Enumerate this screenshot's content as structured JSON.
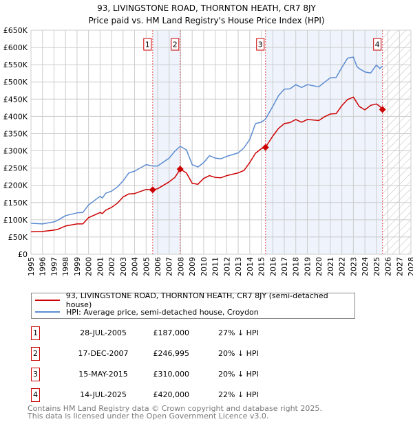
{
  "chart_data": {
    "type": "line",
    "title": "93, LIVINGSTONE ROAD, THORNTON HEATH, CR7 8JY",
    "subtitle": "Price paid vs. HM Land Registry's House Price Index (HPI)",
    "xlim": [
      1995,
      2028
    ],
    "ylim": [
      0,
      650000
    ],
    "grid": true,
    "y_ticks": [
      "£0",
      "£50K",
      "£100K",
      "£150K",
      "£200K",
      "£250K",
      "£300K",
      "£350K",
      "£400K",
      "£450K",
      "£500K",
      "£550K",
      "£600K",
      "£650K"
    ],
    "x_ticks": [
      "1995",
      "1996",
      "1997",
      "1998",
      "1999",
      "2000",
      "2001",
      "2002",
      "2003",
      "2004",
      "2005",
      "2006",
      "2007",
      "2008",
      "2009",
      "2010",
      "2011",
      "2012",
      "2013",
      "2014",
      "2015",
      "2016",
      "2017",
      "2018",
      "2019",
      "2020",
      "2021",
      "2022",
      "2023",
      "2024",
      "2025",
      "2026",
      "2027",
      "2028"
    ],
    "shaded_ranges": [
      [
        2005.57,
        2007.96
      ],
      [
        2015.37,
        2025.53
      ]
    ],
    "forecast_hatch_from": 2025.53,
    "series": [
      {
        "name": "93, LIVINGSTONE ROAD, THORNTON HEATH, CR7 8JY (semi-detached house)",
        "color": "#cc0000",
        "x": [
          1995,
          1996,
          1997,
          1997.3,
          1998,
          1999,
          1999.5,
          2000,
          2001,
          2001.2,
          2001.5,
          2002,
          2002.5,
          2003,
          2003.5,
          2004,
          2005,
          2005.57,
          2006,
          2007,
          2007.5,
          2007.96,
          2008.5,
          2009,
          2009.5,
          2010,
          2010.5,
          2011,
          2011.5,
          2012,
          2013,
          2013.5,
          2014,
          2014.5,
          2015,
          2015.37,
          2016,
          2016.5,
          2017,
          2017.5,
          2018,
          2018.5,
          2019,
          2020,
          2020.5,
          2021,
          2021.5,
          2022,
          2022.5,
          2023,
          2023.3,
          2023.5,
          2024,
          2024.5,
          2025,
          2025.3,
          2025.53
        ],
        "y": [
          65000,
          66000,
          70000,
          72000,
          82000,
          88000,
          88000,
          106000,
          121000,
          118000,
          128000,
          136000,
          148000,
          166000,
          175000,
          176000,
          188000,
          187000,
          190000,
          210000,
          223000,
          246995,
          236000,
          206000,
          203000,
          220000,
          228000,
          223000,
          222000,
          228000,
          236000,
          243000,
          266000,
          293000,
          306000,
          310000,
          343000,
          365000,
          379000,
          382000,
          391000,
          383000,
          391000,
          388000,
          399000,
          407000,
          408000,
          431000,
          449000,
          456000,
          440000,
          429000,
          419000,
          432000,
          436000,
          429000,
          420000
        ]
      },
      {
        "name": "HPI: Average price, semi-detached house, Croydon",
        "color": "#5b8bd0",
        "x": [
          1995,
          1996,
          1997,
          1997.3,
          1998,
          1999,
          1999.5,
          2000,
          2001,
          2001.2,
          2001.5,
          2002,
          2002.5,
          2003,
          2003.5,
          2004,
          2005,
          2005.57,
          2006,
          2007,
          2007.5,
          2007.96,
          2008.5,
          2009,
          2009.5,
          2010,
          2010.5,
          2011,
          2011.5,
          2012,
          2013,
          2013.5,
          2014,
          2014.5,
          2015,
          2015.37,
          2016,
          2016.5,
          2017,
          2017.5,
          2018,
          2018.5,
          2019,
          2020,
          2020.5,
          2021,
          2021.5,
          2022,
          2022.5,
          2023,
          2023.3,
          2023.5,
          2024,
          2024.5,
          2025,
          2025.3,
          2025.53
        ],
        "y": [
          90000,
          88000,
          94000,
          98000,
          112000,
          120000,
          121000,
          143000,
          168000,
          163000,
          177000,
          183000,
          195000,
          213000,
          236000,
          241000,
          260000,
          256000,
          256000,
          279000,
          299000,
          313000,
          303000,
          260000,
          253000,
          266000,
          286000,
          279000,
          277000,
          284000,
          294000,
          309000,
          333000,
          379000,
          383000,
          392000,
          429000,
          460000,
          479000,
          480000,
          492000,
          484000,
          492000,
          486000,
          499000,
          512000,
          513000,
          542000,
          569000,
          572000,
          545000,
          539000,
          529000,
          526000,
          549000,
          539000,
          546000
        ]
      }
    ],
    "sales": [
      {
        "label": "1",
        "x": 2005.57,
        "y": 187000
      },
      {
        "label": "2",
        "x": 2007.96,
        "y": 246995
      },
      {
        "label": "3",
        "x": 2015.37,
        "y": 310000
      },
      {
        "label": "4",
        "x": 2025.53,
        "y": 420000
      }
    ]
  },
  "title": "93, LIVINGSTONE ROAD, THORNTON HEATH, CR7 8JY",
  "subtitle": "Price paid vs. HM Land Registry's House Price Index (HPI)",
  "legend": {
    "property": "93, LIVINGSTONE ROAD, THORNTON HEATH, CR7 8JY (semi-detached house)",
    "hpi": "HPI: Average price, semi-detached house, Croydon"
  },
  "transactions": [
    {
      "num": "1",
      "date": "28-JUL-2005",
      "price": "£187,000",
      "pct": "27% ↓ HPI"
    },
    {
      "num": "2",
      "date": "17-DEC-2007",
      "price": "£246,995",
      "pct": "20% ↓ HPI"
    },
    {
      "num": "3",
      "date": "15-MAY-2015",
      "price": "£310,000",
      "pct": "20% ↓ HPI"
    },
    {
      "num": "4",
      "date": "14-JUL-2025",
      "price": "£420,000",
      "pct": "22% ↓ HPI"
    }
  ],
  "footer": {
    "line1": "Contains HM Land Registry data © Crown copyright and database right 2025.",
    "line2": "This data is licensed under the Open Government Licence v3.0."
  }
}
